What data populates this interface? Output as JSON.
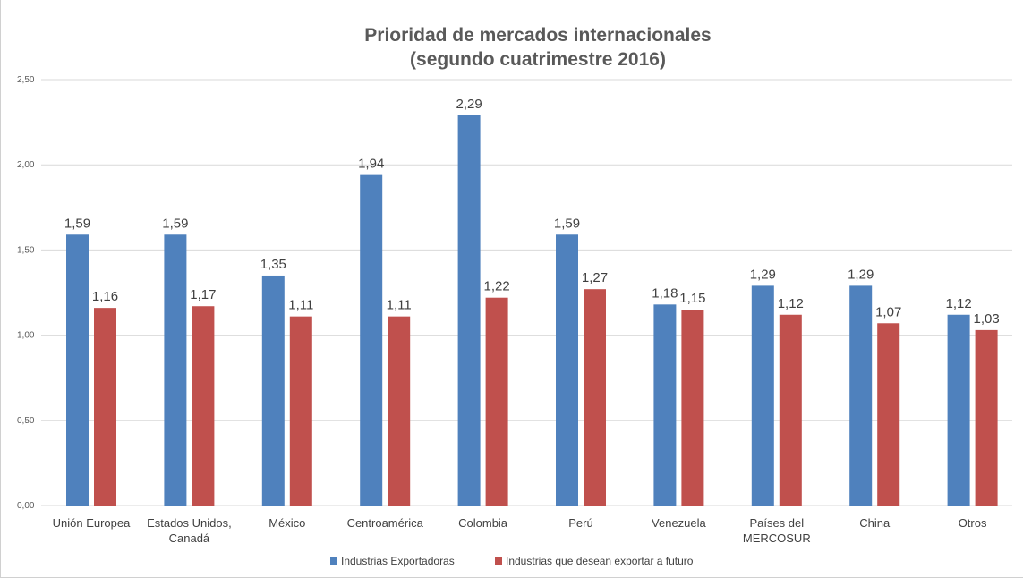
{
  "chart_data": {
    "type": "bar",
    "title": [
      "Prioridad de mercados internacionales",
      "(segundo cuatrimestre 2016)"
    ],
    "categories": [
      [
        "Unión Europea"
      ],
      [
        "Estados Unidos,",
        "Canadá"
      ],
      [
        "México"
      ],
      [
        "Centroamérica"
      ],
      [
        "Colombia"
      ],
      [
        "Perú"
      ],
      [
        "Venezuela"
      ],
      [
        "Países del",
        "MERCOSUR"
      ],
      [
        "China"
      ],
      [
        "Otros"
      ]
    ],
    "series": [
      {
        "name": "Industrias Exportadoras",
        "color": "#4f81bd",
        "values": [
          1.59,
          1.59,
          1.35,
          1.94,
          2.29,
          1.59,
          1.18,
          1.29,
          1.29,
          1.12
        ],
        "labels": [
          "1,59",
          "1,59",
          "1,35",
          "1,94",
          "2,29",
          "1,59",
          "1,18",
          "1,29",
          "1,29",
          "1,12"
        ]
      },
      {
        "name": "Industrias que desean exportar a futuro",
        "color": "#c0504d",
        "values": [
          1.16,
          1.17,
          1.11,
          1.11,
          1.22,
          1.27,
          1.15,
          1.12,
          1.07,
          1.03
        ],
        "labels": [
          "1,16",
          "1,17",
          "1,11",
          "1,11",
          "1,22",
          "1,27",
          "1,15",
          "1,12",
          "1,07",
          "1,03"
        ]
      }
    ],
    "yticks": [
      "0,00",
      "0,50",
      "1,00",
      "1,50",
      "2,00",
      "2,50"
    ],
    "ylim": [
      0,
      2.5
    ],
    "xlabel": "",
    "ylabel": "",
    "grid": true,
    "legend": "bottom"
  }
}
